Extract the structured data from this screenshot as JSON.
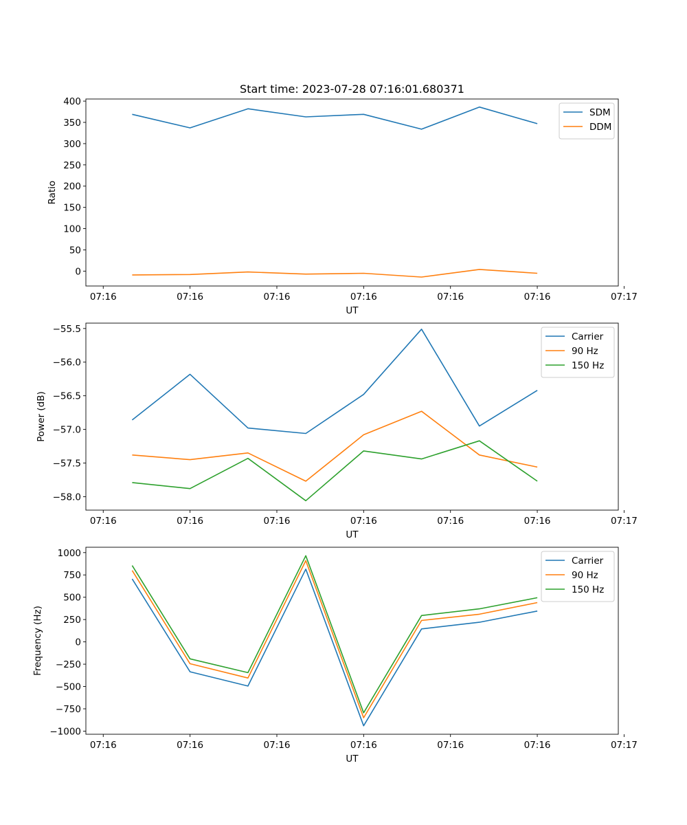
{
  "chart_data": [
    {
      "type": "line",
      "title": "Start time: 2023-07-28 07:16:01.680371",
      "xlabel": "UT",
      "ylabel": "Ratio",
      "x": [
        1,
        2,
        3,
        4,
        5,
        6,
        7,
        8
      ],
      "xlim": [
        0.2,
        9.4
      ],
      "xticks": [
        0.5,
        2,
        3.5,
        5,
        6.5,
        8,
        9.5
      ],
      "xtick_labels": [
        "07:16",
        "07:16",
        "07:16",
        "07:16",
        "07:16",
        "07:16",
        "07:17"
      ],
      "ylim": [
        -35,
        405
      ],
      "yticks": [
        0,
        50,
        100,
        150,
        200,
        250,
        300,
        350,
        400
      ],
      "ytick_labels": [
        "0",
        "50",
        "100",
        "150",
        "200",
        "250",
        "300",
        "350",
        "400"
      ],
      "legend_position": "top-right",
      "series": [
        {
          "name": "SDM",
          "color": "#1f77b4",
          "values": [
            369,
            337,
            382,
            363,
            369,
            334,
            386,
            347
          ]
        },
        {
          "name": "DDM",
          "color": "#ff7f0e",
          "values": [
            -9,
            -8,
            -2,
            -7,
            -5,
            -14,
            4,
            -5
          ]
        }
      ]
    },
    {
      "type": "line",
      "title": "",
      "xlabel": "UT",
      "ylabel": "Power (dB)",
      "x": [
        1,
        2,
        3,
        4,
        5,
        6,
        7,
        8
      ],
      "xlim": [
        0.2,
        9.4
      ],
      "xticks": [
        0.5,
        2,
        3.5,
        5,
        6.5,
        8,
        9.5
      ],
      "xtick_labels": [
        "07:16",
        "07:16",
        "07:16",
        "07:16",
        "07:16",
        "07:16",
        "07:17"
      ],
      "ylim": [
        -58.2,
        -55.42
      ],
      "yticks": [
        -58.0,
        -57.5,
        -57.0,
        -56.5,
        -56.0,
        -55.5
      ],
      "ytick_labels": [
        "−58.0",
        "−57.5",
        "−57.0",
        "−56.5",
        "−56.0",
        "−55.5"
      ],
      "legend_position": "top-right",
      "series": [
        {
          "name": "Carrier",
          "color": "#1f77b4",
          "values": [
            -56.86,
            -56.18,
            -56.98,
            -57.06,
            -56.48,
            -55.51,
            -56.95,
            -56.42
          ]
        },
        {
          "name": "90 Hz",
          "color": "#ff7f0e",
          "values": [
            -57.38,
            -57.45,
            -57.35,
            -57.77,
            -57.08,
            -56.73,
            -57.38,
            -57.56
          ]
        },
        {
          "name": "150 Hz",
          "color": "#2ca02c",
          "values": [
            -57.79,
            -57.88,
            -57.43,
            -58.06,
            -57.32,
            -57.44,
            -57.17,
            -57.77
          ]
        }
      ]
    },
    {
      "type": "line",
      "title": "",
      "xlabel": "UT",
      "ylabel": "Frequency (Hz)",
      "x": [
        1,
        2,
        3,
        4,
        5,
        6,
        7,
        8
      ],
      "xlim": [
        0.2,
        9.4
      ],
      "xticks": [
        0.5,
        2,
        3.5,
        5,
        6.5,
        8,
        9.5
      ],
      "xtick_labels": [
        "07:16",
        "07:16",
        "07:16",
        "07:16",
        "07:16",
        "07:16",
        "07:17"
      ],
      "ylim": [
        -1035,
        1060
      ],
      "yticks": [
        -1000,
        -750,
        -500,
        -250,
        0,
        250,
        500,
        750,
        1000
      ],
      "ytick_labels": [
        "−1000",
        "−750",
        "−500",
        "−250",
        "0",
        "250",
        "500",
        "750",
        "1000"
      ],
      "legend_position": "top-right",
      "series": [
        {
          "name": "Carrier",
          "color": "#1f77b4",
          "values": [
            705,
            -335,
            -495,
            815,
            -940,
            145,
            220,
            345
          ]
        },
        {
          "name": "90 Hz",
          "color": "#ff7f0e",
          "values": [
            800,
            -245,
            -405,
            910,
            -850,
            240,
            310,
            440
          ]
        },
        {
          "name": "150 Hz",
          "color": "#2ca02c",
          "values": [
            855,
            -190,
            -345,
            965,
            -795,
            295,
            370,
            495
          ]
        }
      ]
    }
  ]
}
